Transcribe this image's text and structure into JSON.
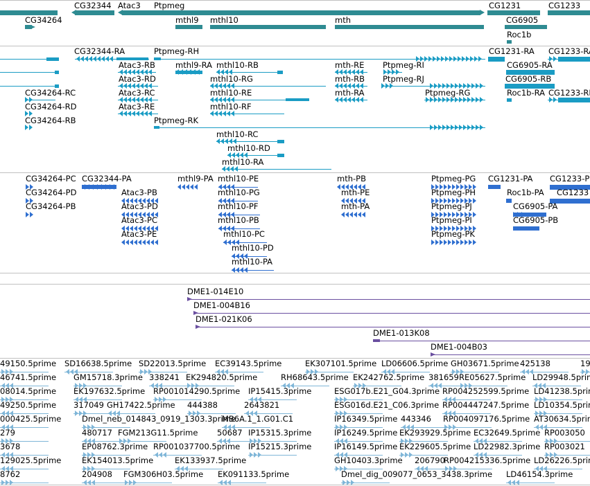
{
  "colors": {
    "gene": "#2e8b92",
    "transcript": "#1a9cc4",
    "protein": "#2f6fd0",
    "clone": "#6a4fa0",
    "est": "#7fb6d8",
    "separator": "#c0c0c0"
  },
  "tracks": {
    "genes": {
      "labels": [
        "CG32344",
        "Atac3",
        "Ptpmeg",
        "CG1231",
        "CG1233",
        "CG34264",
        "mthl9",
        "mthl10",
        "mth",
        "CG6905",
        "Roc1b"
      ]
    },
    "transcripts": {
      "labels": [
        "CG32344-RA",
        "Ptpmeg-RH",
        "CG1231-RA",
        "CG1233-RA",
        "Atac3-RB",
        "mthl9-RA",
        "mthl10-RB",
        "mth-RE",
        "Ptpmeg-RI",
        "CG6905-RA",
        "Atac3-RD",
        "mthl10-RG",
        "mth-RB",
        "Ptpmeg-RJ",
        "CG6905-RB",
        "CG34264-RC",
        "Atac3-RC",
        "mthl10-RE",
        "mth-RA",
        "Ptpmeg-RG",
        "Roc1b-RA",
        "CG1233-RB",
        "CG34264-RD",
        "Atac3-RE",
        "mthl10-RF",
        "CG34264-RB",
        "Ptpmeg-RK",
        "mthl10-RC",
        "mthl10-RD",
        "mthl10-RA"
      ]
    },
    "proteins": {
      "labels": [
        "CG34264-PC",
        "CG32344-PA",
        "mthl9-PA",
        "mthl10-PE",
        "mth-PB",
        "Ptpmeg-PG",
        "CG1231-PA",
        "CG1233-P",
        "CG34264-PD",
        "Atac3-PB",
        "mthl10-PG",
        "mth-PE",
        "Ptpmeg-PH",
        "Roc1b-PA",
        "CG1233",
        "CG34264-PB",
        "Atac3-PD",
        "mthl10-PF",
        "mth-PA",
        "Ptpmeg-PJ",
        "CG6905-PA",
        "Atac3-PC",
        "mthl10-PB",
        "Ptpmeg-PI",
        "CG6905-PB",
        "Atac3-PE",
        "mthl10-PC",
        "Ptpmeg-PK",
        "mthl10-PD",
        "mthl10-PA"
      ]
    },
    "clones": {
      "labels": [
        "DME1-014E10",
        "DME1-004B16",
        "DME1-021K06",
        "DME1-013K08",
        "DME1-004B03"
      ]
    },
    "ests": {
      "labels": [
        "49150.5prime",
        "SD16638.5prime",
        "SD22013.5prime",
        "EC39143.5prime",
        "EK307101.5prime",
        "LD06606.5prime",
        "GH03671.5prime",
        "425138",
        "19",
        "46741.5prime",
        "GM15718.3prime",
        "338241",
        "EK294820.5prime",
        "RH68643.5prime",
        "EK242762.5prime",
        "381659",
        "RE05627.5prime",
        "LD29948.5prime",
        "08014.5prime",
        "EK197632.5prime",
        "RP001014290.5prime",
        "IP15415.3prime",
        "ESG017b.E21_G04.3prime",
        "RP004252599.5prime",
        "LD41238.5prime",
        "49250.5prime",
        "317049",
        "GH17422.5prime",
        "444388",
        "2643821",
        "ESG016d.E21_C06.3prime",
        "RP004447247.5prime",
        "LD10354.5prime",
        "000425.5prime",
        "Dmel_neb_014843_0919_1303.3prime",
        "MB6A.1_1.G01.C1",
        "IP16349.5prime",
        "443346",
        "RP004097176.5prime",
        "AT30634.5prime",
        "279",
        "480717",
        "FGM213G11.5prime",
        "50687",
        "IP15315.3prime",
        "IP16249.5prime",
        "EK293929.5prime",
        "EC32649.5prime",
        "RP003050",
        "3678",
        "EP08762.3prime",
        "RP001037700.5prime",
        "IP15215.3prime",
        "IP16149.5prime",
        "EK229605.5prime",
        "LD22982.3prime",
        "RP003021",
        "129025.5prime",
        "EK154013.5prime",
        "EK133937.5prime",
        "GH10403.3prime",
        "206790",
        "RP004215336.5prime",
        "LD26226.5prime",
        "8762",
        "204908",
        "FGM306H03.5prime",
        "EK091133.5prime",
        "Dmel_dig_009077_0653_3438.3prime",
        "LD46154.3prime"
      ]
    }
  }
}
